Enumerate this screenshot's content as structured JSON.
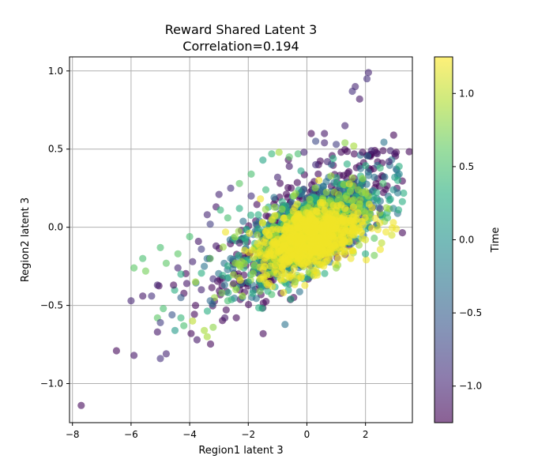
{
  "chart_data": {
    "type": "scatter",
    "title": "Reward Shared Latent 3",
    "subtitle": "Correlation=0.194",
    "xlabel": "Region1 latent 3",
    "ylabel": "Region2 latent 3",
    "xlim": [
      -8.1,
      3.6
    ],
    "ylim": [
      -1.25,
      1.09
    ],
    "xticks": [
      -8,
      -6,
      -4,
      -2,
      0,
      2
    ],
    "xtick_labels": [
      "−8",
      "−6",
      "−4",
      "−2",
      "0",
      "2"
    ],
    "yticks": [
      -1.0,
      -0.5,
      0.0,
      0.5,
      1.0
    ],
    "ytick_labels": [
      "−1.0",
      "−0.5",
      "0.0",
      "0.5",
      "1.0"
    ],
    "grid": true,
    "colorbar": {
      "label": "Time",
      "colormap": "viridis",
      "range": [
        -1.25,
        1.25
      ],
      "ticks": [
        -1.0,
        -0.5,
        0.0,
        0.5,
        1.0
      ],
      "tick_labels": [
        "−1.0",
        "−0.5",
        "0.0",
        "0.5",
        "1.0"
      ]
    },
    "point_alpha": 0.6,
    "cloud": [
      {
        "time": -1.2,
        "cx": 0.0,
        "cy": 0.0,
        "sx": 1.45,
        "sy": 0.22,
        "rho": 0.72,
        "n": 500
      },
      {
        "time": -0.3,
        "cx": 0.0,
        "cy": 0.0,
        "sx": 1.3,
        "sy": 0.19,
        "rho": 0.7,
        "n": 350
      },
      {
        "time": 0.3,
        "cx": 0.0,
        "cy": -0.03,
        "sx": 1.2,
        "sy": 0.16,
        "rho": 0.65,
        "n": 380
      },
      {
        "time": 0.85,
        "cx": 0.0,
        "cy": -0.05,
        "sx": 0.95,
        "sy": 0.13,
        "rho": 0.55,
        "n": 420
      },
      {
        "time": 1.2,
        "cx": 0.1,
        "cy": -0.07,
        "sx": 0.85,
        "sy": 0.11,
        "rho": 0.45,
        "n": 650
      }
    ],
    "points": [
      {
        "x": -7.7,
        "y": -1.14,
        "t": -1.2
      },
      {
        "x": -6.5,
        "y": -0.79,
        "t": -1.2
      },
      {
        "x": -5.9,
        "y": -0.82,
        "t": -1.1
      },
      {
        "x": -5.0,
        "y": -0.84,
        "t": -0.9
      },
      {
        "x": -4.8,
        "y": -0.81,
        "t": -1.0
      },
      {
        "x": -5.1,
        "y": -0.67,
        "t": -1.1
      },
      {
        "x": -4.3,
        "y": -0.58,
        "t": 0.4
      },
      {
        "x": -4.5,
        "y": -0.66,
        "t": 0.1
      },
      {
        "x": -4.2,
        "y": -0.63,
        "t": 0.5
      },
      {
        "x": -3.9,
        "y": -0.6,
        "t": 1.0
      },
      {
        "x": -3.5,
        "y": -0.66,
        "t": 0.9
      },
      {
        "x": -3.2,
        "y": -0.64,
        "t": 0.8
      },
      {
        "x": -3.95,
        "y": -0.68,
        "t": -1.2
      },
      {
        "x": -3.75,
        "y": -0.72,
        "t": -1.1
      },
      {
        "x": -3.4,
        "y": -0.7,
        "t": 0.9
      },
      {
        "x": -6.0,
        "y": -0.47,
        "t": -1.0
      },
      {
        "x": -5.6,
        "y": -0.44,
        "t": -1.1
      },
      {
        "x": -5.3,
        "y": -0.44,
        "t": -0.9
      },
      {
        "x": -5.1,
        "y": -0.37,
        "t": -1.0
      },
      {
        "x": -4.9,
        "y": -0.52,
        "t": 0.5
      },
      {
        "x": -5.1,
        "y": -0.58,
        "t": 0.6
      },
      {
        "x": -5.0,
        "y": -0.61,
        "t": -0.8
      },
      {
        "x": -4.6,
        "y": -0.56,
        "t": -0.6
      },
      {
        "x": -4.3,
        "y": -0.45,
        "t": -0.5
      },
      {
        "x": -4.55,
        "y": -0.37,
        "t": -1.2
      },
      {
        "x": -5.9,
        "y": -0.26,
        "t": 0.6
      },
      {
        "x": -5.6,
        "y": -0.2,
        "t": 0.5
      },
      {
        "x": -5.5,
        "y": -0.28,
        "t": 0.7
      },
      {
        "x": -5.0,
        "y": -0.13,
        "t": 0.5
      },
      {
        "x": -4.8,
        "y": -0.23,
        "t": 0.6
      },
      {
        "x": -4.4,
        "y": -0.26,
        "t": -1.0
      },
      {
        "x": -4.4,
        "y": -0.17,
        "t": 0.6
      },
      {
        "x": -4.3,
        "y": -0.3,
        "t": 0.3
      },
      {
        "x": -4.0,
        "y": -0.06,
        "t": 0.5
      },
      {
        "x": -3.7,
        "y": -0.09,
        "t": -1.1
      },
      {
        "x": -3.4,
        "y": 0.08,
        "t": -1.0
      },
      {
        "x": -3.1,
        "y": 0.13,
        "t": -1.1
      },
      {
        "x": -3.0,
        "y": 0.21,
        "t": -1.0
      },
      {
        "x": -2.95,
        "y": 0.11,
        "t": 0.4
      },
      {
        "x": -3.3,
        "y": 0.02,
        "t": -0.8
      },
      {
        "x": -2.9,
        "y": -0.42,
        "t": 0.7
      },
      {
        "x": -2.7,
        "y": -0.47,
        "t": 0.5
      },
      {
        "x": -2.8,
        "y": -0.58,
        "t": -1.1
      },
      {
        "x": -3.3,
        "y": -0.47,
        "t": -0.4
      },
      {
        "x": -2.6,
        "y": 0.25,
        "t": -0.9
      },
      {
        "x": -2.3,
        "y": 0.28,
        "t": 0.6
      },
      {
        "x": -1.9,
        "y": 0.34,
        "t": 0.5
      },
      {
        "x": -1.5,
        "y": 0.43,
        "t": 0.2
      },
      {
        "x": -1.2,
        "y": 0.47,
        "t": 0.4
      },
      {
        "x": -0.95,
        "y": 0.48,
        "t": 0.9
      },
      {
        "x": -0.6,
        "y": 0.45,
        "t": 0.6
      },
      {
        "x": -0.3,
        "y": 0.47,
        "t": 0.5
      },
      {
        "x": -0.1,
        "y": 0.48,
        "t": -1.0
      },
      {
        "x": 0.15,
        "y": 0.6,
        "t": -1.2
      },
      {
        "x": 0.6,
        "y": 0.6,
        "t": -1.1
      },
      {
        "x": 0.6,
        "y": 0.54,
        "t": -1.0
      },
      {
        "x": 1.0,
        "y": 0.53,
        "t": -0.8
      },
      {
        "x": 1.3,
        "y": 0.54,
        "t": 0.8
      },
      {
        "x": 1.3,
        "y": 0.65,
        "t": -1.0
      },
      {
        "x": 1.6,
        "y": 0.52,
        "t": 0.9
      },
      {
        "x": 0.3,
        "y": 0.55,
        "t": -0.7
      },
      {
        "x": 0.9,
        "y": 0.44,
        "t": 0.3
      },
      {
        "x": 1.9,
        "y": 0.48,
        "t": -1.2
      },
      {
        "x": 2.2,
        "y": 0.49,
        "t": -1.0
      },
      {
        "x": 2.4,
        "y": 0.47,
        "t": -1.1
      },
      {
        "x": 2.6,
        "y": 0.49,
        "t": -1.2
      },
      {
        "x": 2.85,
        "y": 0.49,
        "t": -1.0
      },
      {
        "x": 3.05,
        "y": 0.48,
        "t": -1.2
      },
      {
        "x": 3.0,
        "y": 0.47,
        "t": -1.1
      },
      {
        "x": 2.8,
        "y": 0.42,
        "t": -1.0
      },
      {
        "x": 3.0,
        "y": 0.32,
        "t": 0.1
      },
      {
        "x": 3.15,
        "y": 0.34,
        "t": -0.1
      },
      {
        "x": 3.1,
        "y": 0.3,
        "t": 0.3
      },
      {
        "x": 2.95,
        "y": 0.24,
        "t": 0.0
      },
      {
        "x": 3.1,
        "y": 0.22,
        "t": -0.2
      },
      {
        "x": 2.5,
        "y": 0.38,
        "t": 0.4
      },
      {
        "x": 2.6,
        "y": 0.28,
        "t": 0.5
      },
      {
        "x": 2.3,
        "y": 0.32,
        "t": -0.3
      },
      {
        "x": 2.95,
        "y": 0.12,
        "t": -0.1
      },
      {
        "x": 2.85,
        "y": 0.18,
        "t": 0.2
      },
      {
        "x": 2.75,
        "y": 0.06,
        "t": 0.5
      },
      {
        "x": 2.95,
        "y": 0.03,
        "t": 1.2
      },
      {
        "x": 3.05,
        "y": -0.01,
        "t": 1.2
      },
      {
        "x": 2.9,
        "y": -0.05,
        "t": 1.1
      },
      {
        "x": 2.7,
        "y": -0.03,
        "t": 1.2
      },
      {
        "x": 2.55,
        "y": -0.1,
        "t": 1.0
      },
      {
        "x": 2.5,
        "y": 0.12,
        "t": -0.8
      },
      {
        "x": 2.3,
        "y": -0.07,
        "t": 0.6
      },
      {
        "x": 2.3,
        "y": -0.18,
        "t": 0.7
      },
      {
        "x": 2.0,
        "y": -0.17,
        "t": 0.3
      },
      {
        "x": 2.0,
        "y": -0.08,
        "t": 1.1
      },
      {
        "x": 2.1,
        "y": 0.99,
        "t": -1.0
      },
      {
        "x": 2.05,
        "y": 0.95,
        "t": -0.9
      },
      {
        "x": 1.65,
        "y": 0.9,
        "t": -1.0
      },
      {
        "x": 1.55,
        "y": 0.87,
        "t": -0.9
      },
      {
        "x": 1.8,
        "y": 0.82,
        "t": -1.1
      },
      {
        "x": -2.0,
        "y": -0.35,
        "t": 0.2
      },
      {
        "x": -1.8,
        "y": -0.25,
        "t": 0.6
      },
      {
        "x": -2.2,
        "y": -0.44,
        "t": 0.9
      },
      {
        "x": -2.5,
        "y": -0.36,
        "t": -1.1
      },
      {
        "x": -1.6,
        "y": -0.41,
        "t": 0.7
      },
      {
        "x": -1.2,
        "y": -0.43,
        "t": 0.5
      },
      {
        "x": -0.9,
        "y": -0.33,
        "t": 1.2
      },
      {
        "x": -0.5,
        "y": -0.3,
        "t": 1.2
      },
      {
        "x": -0.4,
        "y": -0.35,
        "t": 0.8
      },
      {
        "x": 0.5,
        "y": -0.24,
        "t": 1.2
      },
      {
        "x": 1.0,
        "y": -0.26,
        "t": 0.8
      },
      {
        "x": 1.5,
        "y": -0.2,
        "t": 1.2
      },
      {
        "x": -3.5,
        "y": -0.25,
        "t": -0.3
      },
      {
        "x": -3.2,
        "y": -0.33,
        "t": -0.9
      },
      {
        "x": -3.6,
        "y": -0.4,
        "t": -1.0
      },
      {
        "x": -3.8,
        "y": -0.35,
        "t": 0.9
      },
      {
        "x": -3.8,
        "y": -0.5,
        "t": -1.2
      },
      {
        "x": -4.1,
        "y": -0.36,
        "t": -1.1
      },
      {
        "x": -3.9,
        "y": -0.22,
        "t": -1.0
      },
      {
        "x": -3.6,
        "y": -0.14,
        "t": -0.8
      },
      {
        "x": -3.1,
        "y": -0.12,
        "t": -1.1
      },
      {
        "x": -3.3,
        "y": -0.2,
        "t": 0.6
      },
      {
        "x": -2.6,
        "y": -0.2,
        "t": -0.3
      },
      {
        "x": -2.3,
        "y": -0.1,
        "t": -1.1
      },
      {
        "x": -2.7,
        "y": 0.06,
        "t": 0.5
      },
      {
        "x": -2.3,
        "y": 0.12,
        "t": 0.3
      },
      {
        "x": -1.9,
        "y": 0.2,
        "t": -0.9
      },
      {
        "x": -1.4,
        "y": 0.24,
        "t": 0.4
      },
      {
        "x": -1.0,
        "y": 0.32,
        "t": -1.0
      },
      {
        "x": -0.6,
        "y": 0.39,
        "t": -1.1
      },
      {
        "x": -0.2,
        "y": 0.36,
        "t": 0.2
      },
      {
        "x": 0.3,
        "y": 0.4,
        "t": -0.9
      },
      {
        "x": 0.7,
        "y": 0.42,
        "t": -1.0
      }
    ]
  }
}
